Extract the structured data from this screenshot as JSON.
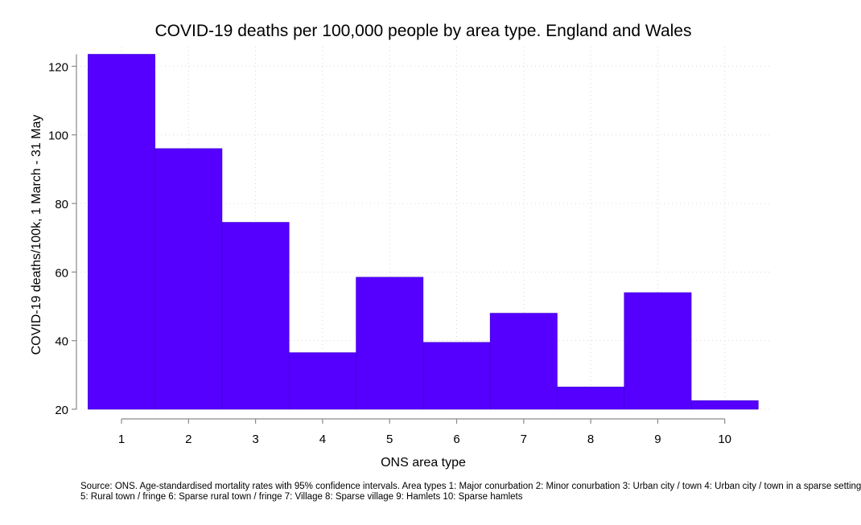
{
  "chart_data": {
    "type": "bar",
    "title": "COVID-19 deaths per 100,000 people by area type. England and Wales",
    "xlabel": "ONS area type",
    "ylabel": "COVID-19 deaths/100k, 1 March - 31 May",
    "categories": [
      "1",
      "2",
      "3",
      "4",
      "5",
      "6",
      "7",
      "8",
      "9",
      "10"
    ],
    "values": [
      123.5,
      96,
      74.5,
      36.5,
      58.5,
      39.5,
      48,
      26.5,
      54,
      22.5
    ],
    "x_ticks": [
      "1",
      "2",
      "3",
      "4",
      "5",
      "6",
      "7",
      "8",
      "9",
      "10"
    ],
    "y_ticks": [
      "20",
      "40",
      "60",
      "80",
      "100",
      "120"
    ],
    "ylim": [
      20,
      124
    ],
    "bar_color": "#5500ff",
    "grid": true,
    "legend": "none"
  },
  "notes": {
    "line1": "Source: ONS. Age-standardised mortality rates with 95% confidence intervals. Area types 1: Major conurbation 2: Minor conurbation 3: Urban city / town 4: Urban city / town in a sparse setting",
    "line2": "5: Rural town / fringe 6: Sparse rural town / fringe 7: Village 8: Sparse village 9: Hamlets 10: Sparse hamlets"
  }
}
